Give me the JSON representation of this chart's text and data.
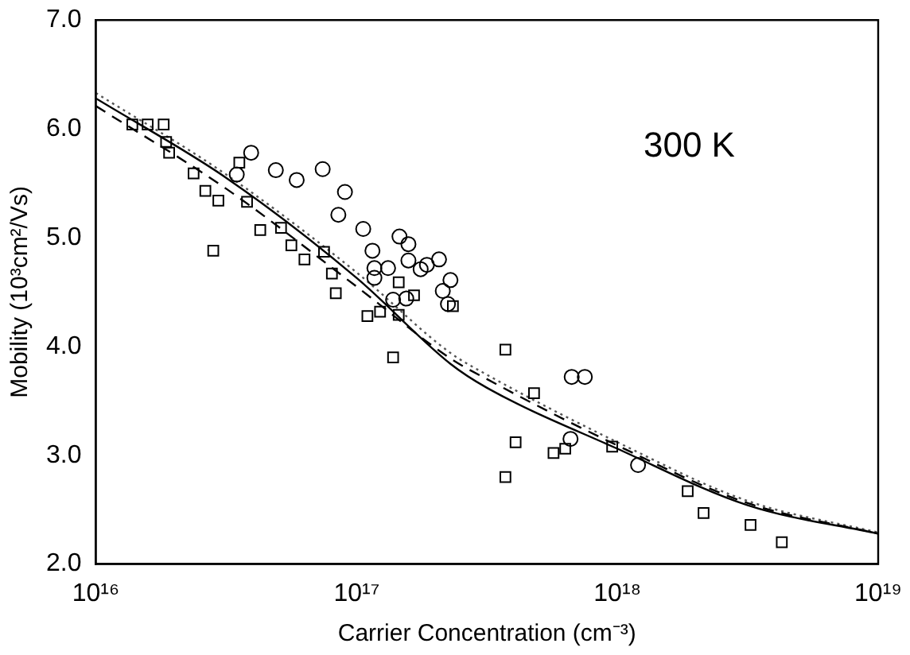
{
  "chart_data": {
    "type": "scatter",
    "xlabel": "Carrier Concentration (cm⁻³)",
    "ylabel": "Mobility (10³cm²/Vs)",
    "annotations": [
      "300 K"
    ],
    "log": "x",
    "grid": false,
    "legend": false,
    "xlim": [
      1e+16,
      1e+19
    ],
    "xticks": [
      {
        "value": 1e+16,
        "label": "10¹⁶"
      },
      {
        "value": 1e+17,
        "label": "10¹⁷"
      },
      {
        "value": 1e+18,
        "label": "10¹⁸"
      },
      {
        "value": 1e+19,
        "label": "10¹⁹"
      }
    ],
    "ylim": [
      2,
      7
    ],
    "yticks": [
      {
        "value": 2,
        "label": "2.0"
      },
      {
        "value": 3,
        "label": "3.0"
      },
      {
        "value": 4,
        "label": "4.0"
      },
      {
        "value": 5,
        "label": "5.0"
      },
      {
        "value": 6,
        "label": "6.0"
      },
      {
        "value": 7,
        "label": "7.0"
      }
    ],
    "series": [
      {
        "marker": "square",
        "color": "#000000",
        "x": [
          1.38e+16,
          1.58e+16,
          1.82e+16,
          1.86e+16,
          1.91e+16,
          2.37e+16,
          2.63e+16,
          2.95e+16,
          3.55e+16,
          3.8e+16,
          2.82e+16,
          4.27e+16,
          5.13e+16,
          5.62e+16,
          6.31e+16,
          7.5e+16,
          8.04e+16,
          8.32e+16,
          1.1e+17,
          1.23e+17,
          1.45e+17,
          1.45e+17,
          1.66e+17,
          2.34e+17,
          1.38e+17,
          3.72e+17,
          4.79e+17,
          4.07e+17,
          3.72e+17,
          5.69e+17,
          6.31e+17,
          9.55e+17,
          1.86e+18,
          2.14e+18,
          3.24e+18,
          4.27e+18
        ],
        "values": [
          6.04,
          6.04,
          6.04,
          5.88,
          5.78,
          5.59,
          5.43,
          5.34,
          5.69,
          5.33,
          4.88,
          5.07,
          5.09,
          4.93,
          4.8,
          4.87,
          4.67,
          4.49,
          4.28,
          4.32,
          4.29,
          4.59,
          4.47,
          4.37,
          3.9,
          3.97,
          3.57,
          3.12,
          2.8,
          3.02,
          3.06,
          3.08,
          2.67,
          2.47,
          2.36,
          2.2
        ]
      },
      {
        "marker": "circle",
        "color": "#000000",
        "x": [
          3.94e+16,
          3.47e+16,
          4.9e+16,
          5.89e+16,
          7.41e+16,
          9.02e+16,
          8.51e+16,
          1.06e+17,
          1.15e+17,
          1.46e+17,
          1.58e+17,
          1.17e+17,
          1.32e+17,
          1.17e+17,
          1.58e+17,
          1.76e+17,
          1.86e+17,
          2.07e+17,
          2.29e+17,
          2.14e+17,
          2.24e+17,
          1.38e+17,
          1.55e+17,
          6.61e+17,
          6.68e+17,
          7.5e+17,
          1.2e+18
        ],
        "values": [
          5.78,
          5.58,
          5.62,
          5.53,
          5.63,
          5.42,
          5.21,
          5.08,
          4.88,
          5.01,
          4.94,
          4.72,
          4.72,
          4.63,
          4.79,
          4.71,
          4.75,
          4.8,
          4.61,
          4.51,
          4.39,
          4.43,
          4.44,
          3.15,
          3.72,
          3.72,
          2.91
        ]
      },
      {
        "type": "line",
        "marker": "none",
        "line_style": "solid",
        "color": "#000000",
        "x": [
          1e+16,
          3.16e+16,
          1e+17,
          2.29e+17,
          3.16e+17,
          1e+18,
          3.16e+18,
          1e+19
        ],
        "values": [
          6.28,
          5.55,
          4.63,
          3.84,
          3.62,
          3.06,
          2.54,
          2.28
        ]
      },
      {
        "type": "line",
        "marker": "none",
        "line_style": "dashed",
        "color": "#000000",
        "x": [
          1e+16,
          3.16e+16,
          1e+17,
          2.29e+17,
          3.16e+17,
          1e+18,
          3.16e+18,
          1e+19
        ],
        "values": [
          6.21,
          5.45,
          4.55,
          3.89,
          3.7,
          3.09,
          2.56,
          2.28
        ]
      },
      {
        "type": "line",
        "marker": "none",
        "line_style": "dotted",
        "color": "#555555",
        "x": [
          1e+16,
          3.16e+16,
          1e+17,
          2.29e+17,
          3.16e+17,
          1e+18,
          3.16e+18,
          1e+19
        ],
        "values": [
          6.33,
          5.58,
          4.68,
          3.94,
          3.74,
          3.12,
          2.58,
          2.29
        ]
      }
    ]
  }
}
